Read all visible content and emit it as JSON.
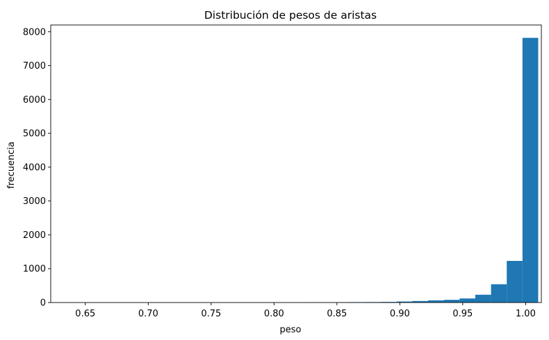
{
  "chart_data": {
    "type": "bar",
    "title": "Distribución de pesos de aristas",
    "xlabel": "peso",
    "ylabel": "frecuencia",
    "xlim": [
      0.6225,
      1.0125
    ],
    "ylim": [
      0,
      8200
    ],
    "x_ticks": [
      "0.65",
      "0.70",
      "0.75",
      "0.80",
      "0.85",
      "0.90",
      "0.95",
      "1.00"
    ],
    "y_ticks": [
      "0",
      "1000",
      "2000",
      "3000",
      "4000",
      "5000",
      "6000",
      "7000",
      "8000"
    ],
    "grid": false,
    "bar_color": "#1f77b4",
    "bins": [
      {
        "x0": 0.635,
        "x1": 0.6475,
        "value": 1
      },
      {
        "x0": 0.6475,
        "x1": 0.66,
        "value": 0
      },
      {
        "x0": 0.66,
        "x1": 0.6725,
        "value": 0
      },
      {
        "x0": 0.6725,
        "x1": 0.685,
        "value": 0
      },
      {
        "x0": 0.685,
        "x1": 0.6975,
        "value": 0
      },
      {
        "x0": 0.6975,
        "x1": 0.71,
        "value": 1
      },
      {
        "x0": 0.71,
        "x1": 0.7225,
        "value": 0
      },
      {
        "x0": 0.7225,
        "x1": 0.735,
        "value": 1
      },
      {
        "x0": 0.735,
        "x1": 0.7475,
        "value": 1
      },
      {
        "x0": 0.7475,
        "x1": 0.76,
        "value": 1
      },
      {
        "x0": 0.76,
        "x1": 0.7725,
        "value": 2
      },
      {
        "x0": 0.7725,
        "x1": 0.785,
        "value": 2
      },
      {
        "x0": 0.785,
        "x1": 0.7975,
        "value": 3
      },
      {
        "x0": 0.7975,
        "x1": 0.81,
        "value": 3
      },
      {
        "x0": 0.81,
        "x1": 0.8225,
        "value": 4
      },
      {
        "x0": 0.8225,
        "x1": 0.835,
        "value": 5
      },
      {
        "x0": 0.835,
        "x1": 0.8475,
        "value": 8
      },
      {
        "x0": 0.8475,
        "x1": 0.86,
        "value": 10
      },
      {
        "x0": 0.86,
        "x1": 0.8725,
        "value": 12
      },
      {
        "x0": 0.8725,
        "x1": 0.885,
        "value": 14
      },
      {
        "x0": 0.885,
        "x1": 0.8975,
        "value": 18
      },
      {
        "x0": 0.8975,
        "x1": 0.91,
        "value": 30
      },
      {
        "x0": 0.91,
        "x1": 0.9225,
        "value": 45
      },
      {
        "x0": 0.9225,
        "x1": 0.935,
        "value": 65
      },
      {
        "x0": 0.935,
        "x1": 0.9475,
        "value": 80
      },
      {
        "x0": 0.9475,
        "x1": 0.96,
        "value": 120
      },
      {
        "x0": 0.96,
        "x1": 0.9725,
        "value": 230
      },
      {
        "x0": 0.9725,
        "x1": 0.985,
        "value": 540
      },
      {
        "x0": 0.985,
        "x1": 0.9975,
        "value": 1230
      },
      {
        "x0": 0.9975,
        "x1": 1.01,
        "value": 7820
      }
    ]
  }
}
